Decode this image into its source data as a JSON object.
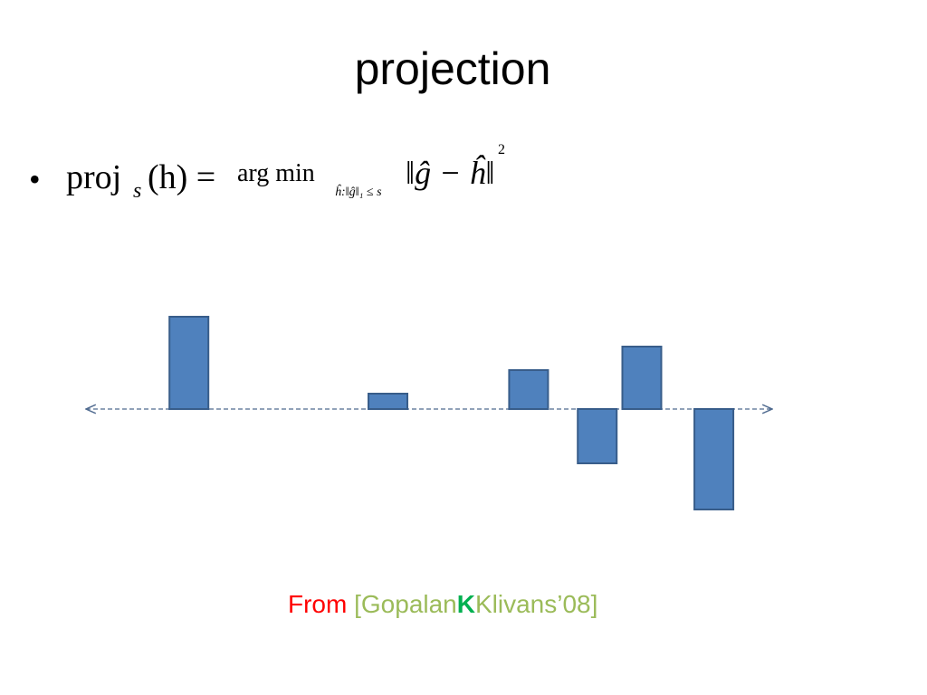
{
  "title": "projection",
  "formula": {
    "bullet": "•",
    "proj": "proj",
    "proj_sub": "s",
    "lhs_rest": "(h) =",
    "argmin": "arg min",
    "argmin_sub": "ĥ:‖ĝ‖₁ ≤ s",
    "norm_body": "‖ĝ − ĥ‖",
    "norm_sup": "2"
  },
  "chart_data": {
    "type": "bar",
    "x": [
      15,
      44,
      64.5,
      74.5,
      81,
      91.5
    ],
    "values": [
      102,
      17,
      43,
      -60,
      69,
      -111
    ],
    "xlim": [
      0,
      100
    ],
    "ylim": [
      -150,
      150
    ],
    "color": "#4f81bd"
  },
  "citation": {
    "from": "From",
    "open": "[Gopalan",
    "bold": "K",
    "close": "Klivans’08]"
  }
}
